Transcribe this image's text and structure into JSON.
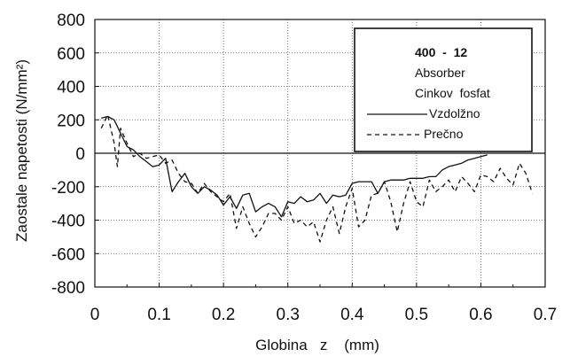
{
  "chart_data": {
    "type": "line",
    "xlabel": "Globina   z    (mm)",
    "ylabel": "Zaostale napetosti  (N/mm²)",
    "xlim": [
      0,
      0.7
    ],
    "ylim": [
      -800,
      800
    ],
    "x_ticks": [
      "0",
      "0.1",
      "0.2",
      "0.3",
      "0.4",
      "0.5",
      "0.6",
      "0.7"
    ],
    "y_ticks": [
      "800",
      "600",
      "400",
      "200",
      "0",
      "-200",
      "-400",
      "-600",
      "-800"
    ],
    "grid": true,
    "legend_placement": "top-right",
    "legend_header": [
      "400  -  12",
      "Absorber",
      "Cinkov  fosfat"
    ],
    "series": [
      {
        "name": "Vzdolžno",
        "style": "solid",
        "color": "#111111",
        "x": [
          0.01,
          0.02,
          0.03,
          0.04,
          0.05,
          0.06,
          0.07,
          0.08,
          0.09,
          0.1,
          0.11,
          0.12,
          0.13,
          0.14,
          0.15,
          0.16,
          0.17,
          0.18,
          0.19,
          0.2,
          0.21,
          0.22,
          0.23,
          0.24,
          0.25,
          0.26,
          0.27,
          0.28,
          0.29,
          0.3,
          0.31,
          0.32,
          0.33,
          0.34,
          0.35,
          0.36,
          0.37,
          0.38,
          0.39,
          0.4,
          0.41,
          0.42,
          0.43,
          0.44,
          0.45,
          0.46,
          0.47,
          0.48,
          0.49,
          0.5,
          0.51,
          0.52,
          0.53,
          0.54,
          0.55,
          0.56,
          0.57,
          0.58,
          0.59,
          0.6,
          0.61
        ],
        "values": [
          210,
          220,
          200,
          120,
          40,
          20,
          -20,
          -50,
          -80,
          -70,
          -30,
          -230,
          -170,
          -120,
          -200,
          -240,
          -200,
          -220,
          -250,
          -310,
          -260,
          -330,
          -250,
          -240,
          -350,
          -320,
          -300,
          -320,
          -380,
          -290,
          -300,
          -260,
          -290,
          -280,
          -240,
          -300,
          -250,
          -260,
          -250,
          -180,
          -170,
          -170,
          -170,
          -240,
          -170,
          -160,
          -160,
          -160,
          -150,
          -150,
          -150,
          -140,
          -140,
          -100,
          -80,
          -70,
          -60,
          -40,
          -30,
          -20,
          -10
        ]
      },
      {
        "name": "Prečno",
        "style": "dashed",
        "color": "#111111",
        "x": [
          0.01,
          0.02,
          0.03,
          0.035,
          0.04,
          0.05,
          0.06,
          0.07,
          0.08,
          0.09,
          0.1,
          0.11,
          0.12,
          0.13,
          0.14,
          0.15,
          0.16,
          0.17,
          0.18,
          0.19,
          0.2,
          0.21,
          0.22,
          0.23,
          0.24,
          0.25,
          0.26,
          0.27,
          0.28,
          0.29,
          0.3,
          0.31,
          0.32,
          0.33,
          0.34,
          0.35,
          0.36,
          0.37,
          0.38,
          0.39,
          0.4,
          0.41,
          0.42,
          0.43,
          0.44,
          0.45,
          0.46,
          0.47,
          0.48,
          0.49,
          0.5,
          0.51,
          0.52,
          0.53,
          0.54,
          0.55,
          0.56,
          0.57,
          0.58,
          0.59,
          0.6,
          0.61,
          0.62,
          0.63,
          0.64,
          0.65,
          0.66,
          0.67,
          0.68
        ],
        "values": [
          150,
          230,
          60,
          -80,
          150,
          60,
          -20,
          0,
          -30,
          -20,
          -10,
          -60,
          -40,
          -120,
          -170,
          -180,
          -240,
          -180,
          -230,
          -260,
          -290,
          -240,
          -450,
          -320,
          -420,
          -500,
          -440,
          -360,
          -360,
          -400,
          -320,
          -420,
          -400,
          -440,
          -410,
          -530,
          -400,
          -320,
          -480,
          -320,
          -210,
          -440,
          -400,
          -250,
          -240,
          -170,
          -290,
          -470,
          -300,
          -170,
          -290,
          -320,
          -160,
          -230,
          -200,
          -160,
          -230,
          -140,
          -180,
          -230,
          -130,
          -140,
          -170,
          -90,
          -150,
          -190,
          -60,
          -120,
          -240
        ]
      }
    ]
  }
}
